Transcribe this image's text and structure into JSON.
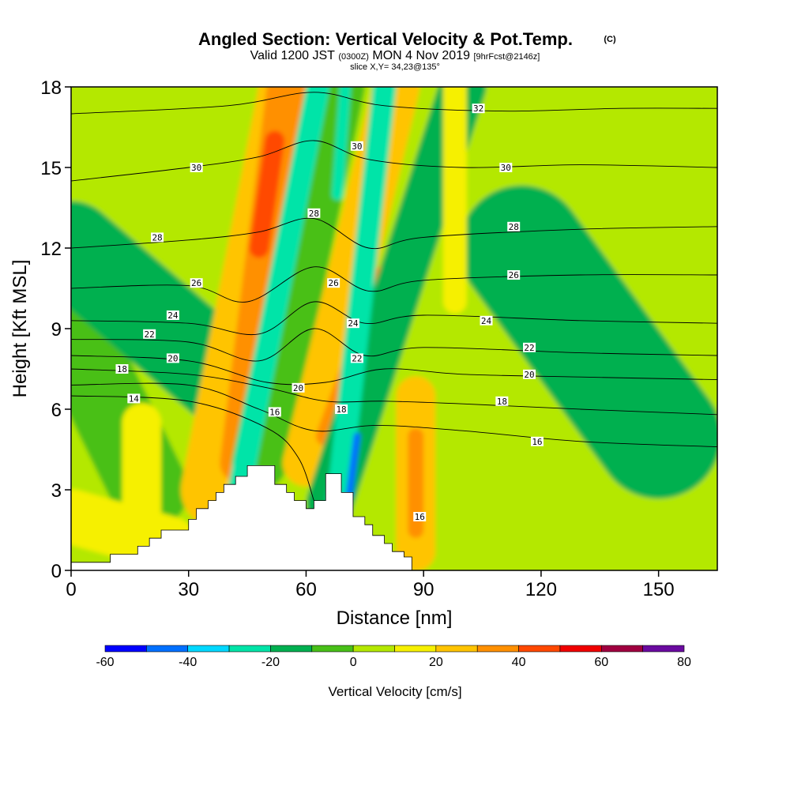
{
  "title": {
    "main": "Angled Section: Vertical Velocity & Pot.Temp.",
    "main_unit": "(C)",
    "valid_a": "Valid 1200 JST",
    "valid_z": "(0300Z)",
    "valid_b": "MON 4 Nov 2019",
    "fcst": "[9hrFcst@2146z]",
    "slice": "slice X,Y= 34,23@135°"
  },
  "chart_data": {
    "type": "heatmap",
    "xlabel": "Distance [nm]",
    "ylabel": "Height [Kft MSL]",
    "xlim": [
      0,
      165
    ],
    "ylim": [
      0,
      18
    ],
    "xticks": [
      0,
      30,
      60,
      90,
      120,
      150
    ],
    "yticks": [
      0,
      3,
      6,
      9,
      12,
      15,
      18
    ],
    "terrain_profile": {
      "x": [
        0,
        10,
        10,
        17,
        17,
        20,
        20,
        23,
        23,
        30,
        30,
        32,
        32,
        35,
        35,
        37,
        37,
        39,
        39,
        42,
        42,
        45,
        45,
        52,
        52,
        55,
        55,
        57,
        57,
        60,
        60,
        62,
        62,
        65,
        65,
        69,
        69,
        72,
        72,
        75,
        75,
        77,
        77,
        80,
        80,
        82,
        82,
        85,
        85,
        87,
        87
      ],
      "y": [
        0.3,
        0.3,
        0.6,
        0.6,
        0.9,
        0.9,
        1.2,
        1.2,
        1.5,
        1.5,
        1.9,
        1.9,
        2.3,
        2.3,
        2.6,
        2.6,
        2.9,
        2.9,
        3.2,
        3.2,
        3.5,
        3.5,
        3.9,
        3.9,
        3.2,
        3.2,
        2.9,
        2.9,
        2.6,
        2.6,
        2.3,
        2.3,
        2.6,
        2.6,
        3.6,
        3.6,
        2.9,
        2.9,
        2.0,
        2.0,
        1.7,
        1.7,
        1.3,
        1.3,
        1.0,
        1.0,
        0.7,
        0.7,
        0.5,
        0.5,
        0
      ]
    },
    "shading_bands": [
      {
        "value": 18,
        "center": [
          0,
          17,
          120,
          4
        ],
        "halfwidth": 14
      },
      {
        "value": 5,
        "center": [
          0,
          5,
          165,
          6
        ],
        "halfwidth": 140
      },
      {
        "value": -5,
        "center": [
          0,
          9,
          20,
          3
        ],
        "halfwidth": 10
      },
      {
        "value": -12,
        "center": [
          115,
          12,
          150,
          5
        ],
        "halfwidth": 16
      },
      {
        "value": -18,
        "center": [
          0,
          12,
          40,
          7
        ],
        "halfwidth": 12
      },
      {
        "value": 25,
        "center": [
          58,
          18,
          38,
          3
        ],
        "halfwidth": 10
      },
      {
        "value": 35,
        "center": [
          55,
          18,
          43,
          4
        ],
        "halfwidth": 5
      },
      {
        "value": 45,
        "center": [
          52,
          16,
          48,
          12
        ],
        "halfwidth": 2.5
      },
      {
        "value": -10,
        "center": [
          68,
          18,
          48,
          4
        ],
        "halfwidth": 7
      },
      {
        "value": -22,
        "center": [
          63,
          18,
          43,
          3
        ],
        "halfwidth": 3
      },
      {
        "value": -28,
        "center": [
          70,
          18,
          68,
          14
        ],
        "halfwidth": 1.5
      },
      {
        "value": 22,
        "center": [
          83,
          18,
          60,
          4
        ],
        "halfwidth": 6
      },
      {
        "value": 35,
        "center": [
          80,
          11,
          65,
          5
        ],
        "halfwidth": 2.5
      },
      {
        "value": -12,
        "center": [
          100,
          18,
          66,
          2.5
        ],
        "halfwidth": 6
      },
      {
        "value": -22,
        "center": [
          80,
          18,
          68,
          2.3
        ],
        "halfwidth": 3
      },
      {
        "value": -50,
        "center": [
          73,
          5,
          71,
          2.8
        ],
        "halfwidth": 0.9
      },
      {
        "value": 25,
        "center": [
          88,
          6.5,
          88,
          0.7
        ],
        "halfwidth": 5
      },
      {
        "value": 35,
        "center": [
          88,
          5,
          88,
          1.5
        ],
        "halfwidth": 2
      },
      {
        "value": 15,
        "center": [
          18,
          5.5,
          18,
          1.5
        ],
        "halfwidth": 5
      },
      {
        "value": 15,
        "center": [
          0,
          2,
          25,
          1
        ],
        "halfwidth": 7
      },
      {
        "value": 15,
        "center": [
          98,
          18,
          98,
          10
        ],
        "halfwidth": 3
      }
    ],
    "theta_contours": [
      {
        "value": 14,
        "points": [
          [
            0,
            6.5
          ],
          [
            30,
            6.3
          ],
          [
            50,
            5.3
          ],
          [
            58,
            4.2
          ],
          [
            62,
            2.6
          ]
        ]
      },
      {
        "value": 16,
        "points": [
          [
            0,
            6.9
          ],
          [
            30,
            6.9
          ],
          [
            48,
            6.0
          ],
          [
            62,
            5.2
          ],
          [
            78,
            5.4
          ],
          [
            100,
            5.2
          ],
          [
            130,
            4.8
          ],
          [
            165,
            4.6
          ]
        ]
      },
      {
        "value": 18,
        "points": [
          [
            0,
            7.5
          ],
          [
            30,
            7.3
          ],
          [
            50,
            6.8
          ],
          [
            65,
            6.3
          ],
          [
            80,
            6.3
          ],
          [
            100,
            6.2
          ],
          [
            130,
            6.0
          ],
          [
            165,
            5.8
          ]
        ]
      },
      {
        "value": 20,
        "points": [
          [
            0,
            8.0
          ],
          [
            30,
            7.8
          ],
          [
            50,
            7.0
          ],
          [
            65,
            7.0
          ],
          [
            80,
            7.5
          ],
          [
            100,
            7.3
          ],
          [
            130,
            7.2
          ],
          [
            165,
            7.1
          ]
        ]
      },
      {
        "value": 22,
        "points": [
          [
            0,
            8.6
          ],
          [
            30,
            8.5
          ],
          [
            48,
            7.8
          ],
          [
            62,
            9.0
          ],
          [
            75,
            8.0
          ],
          [
            90,
            8.3
          ],
          [
            130,
            8.1
          ],
          [
            165,
            8.0
          ]
        ]
      },
      {
        "value": 24,
        "points": [
          [
            0,
            9.3
          ],
          [
            30,
            9.2
          ],
          [
            48,
            8.8
          ],
          [
            62,
            10.0
          ],
          [
            75,
            9.2
          ],
          [
            90,
            9.5
          ],
          [
            130,
            9.3
          ],
          [
            165,
            9.2
          ]
        ]
      },
      {
        "value": 26,
        "points": [
          [
            0,
            10.5
          ],
          [
            30,
            10.6
          ],
          [
            45,
            10.0
          ],
          [
            62,
            11.3
          ],
          [
            76,
            10.4
          ],
          [
            90,
            10.8
          ],
          [
            130,
            11.0
          ],
          [
            165,
            11.0
          ]
        ]
      },
      {
        "value": 28,
        "points": [
          [
            0,
            12.0
          ],
          [
            30,
            12.3
          ],
          [
            48,
            12.6
          ],
          [
            62,
            13.1
          ],
          [
            76,
            12.0
          ],
          [
            90,
            12.4
          ],
          [
            130,
            12.7
          ],
          [
            165,
            12.8
          ]
        ]
      },
      {
        "value": 30,
        "points": [
          [
            0,
            14.5
          ],
          [
            30,
            15.0
          ],
          [
            48,
            15.4
          ],
          [
            62,
            16.0
          ],
          [
            76,
            15.3
          ],
          [
            100,
            15.0
          ],
          [
            130,
            15.1
          ],
          [
            165,
            15.0
          ]
        ]
      },
      {
        "value": 32,
        "points": [
          [
            0,
            17.0
          ],
          [
            40,
            17.3
          ],
          [
            62,
            17.8
          ],
          [
            80,
            17.3
          ],
          [
            110,
            17.1
          ],
          [
            140,
            17.2
          ],
          [
            165,
            17.2
          ]
        ]
      }
    ],
    "contour_labels": [
      {
        "text": "14",
        "x": 16,
        "y": 6.4
      },
      {
        "text": "16",
        "x": 52,
        "y": 5.9
      },
      {
        "text": "16",
        "x": 119,
        "y": 4.8
      },
      {
        "text": "16",
        "x": 89,
        "y": 2.0
      },
      {
        "text": "18",
        "x": 13,
        "y": 7.5
      },
      {
        "text": "18",
        "x": 69,
        "y": 6.0
      },
      {
        "text": "18",
        "x": 110,
        "y": 6.3
      },
      {
        "text": "20",
        "x": 26,
        "y": 7.9
      },
      {
        "text": "20",
        "x": 58,
        "y": 6.8
      },
      {
        "text": "20",
        "x": 117,
        "y": 7.3
      },
      {
        "text": "22",
        "x": 20,
        "y": 8.8
      },
      {
        "text": "22",
        "x": 73,
        "y": 7.9
      },
      {
        "text": "22",
        "x": 117,
        "y": 8.3
      },
      {
        "text": "24",
        "x": 26,
        "y": 9.5
      },
      {
        "text": "24",
        "x": 72,
        "y": 9.2
      },
      {
        "text": "24",
        "x": 106,
        "y": 9.3
      },
      {
        "text": "26",
        "x": 32,
        "y": 10.7
      },
      {
        "text": "26",
        "x": 67,
        "y": 10.7
      },
      {
        "text": "26",
        "x": 113,
        "y": 11.0
      },
      {
        "text": "28",
        "x": 22,
        "y": 12.4
      },
      {
        "text": "28",
        "x": 62,
        "y": 13.3
      },
      {
        "text": "28",
        "x": 113,
        "y": 12.8
      },
      {
        "text": "30",
        "x": 32,
        "y": 15.0
      },
      {
        "text": "30",
        "x": 73,
        "y": 15.8
      },
      {
        "text": "30",
        "x": 111,
        "y": 15.0
      },
      {
        "text": "32",
        "x": 104,
        "y": 17.2
      }
    ],
    "colorbar": {
      "label": "Vertical Velocity [cm/s]",
      "bounds": [
        -60,
        -50,
        -40,
        -30,
        -20,
        -10,
        0,
        10,
        20,
        30,
        40,
        50,
        60,
        70,
        80
      ],
      "colors": [
        "#0000ff",
        "#0070ff",
        "#00d8ff",
        "#00e4a8",
        "#00b050",
        "#48c018",
        "#b4e800",
        "#f6f000",
        "#ffc400",
        "#ff9000",
        "#ff4800",
        "#f00000",
        "#a00040",
        "#6a0aa0"
      ],
      "ticks": [
        -60,
        -40,
        -20,
        0,
        20,
        40,
        60,
        80
      ]
    },
    "grid": false
  }
}
